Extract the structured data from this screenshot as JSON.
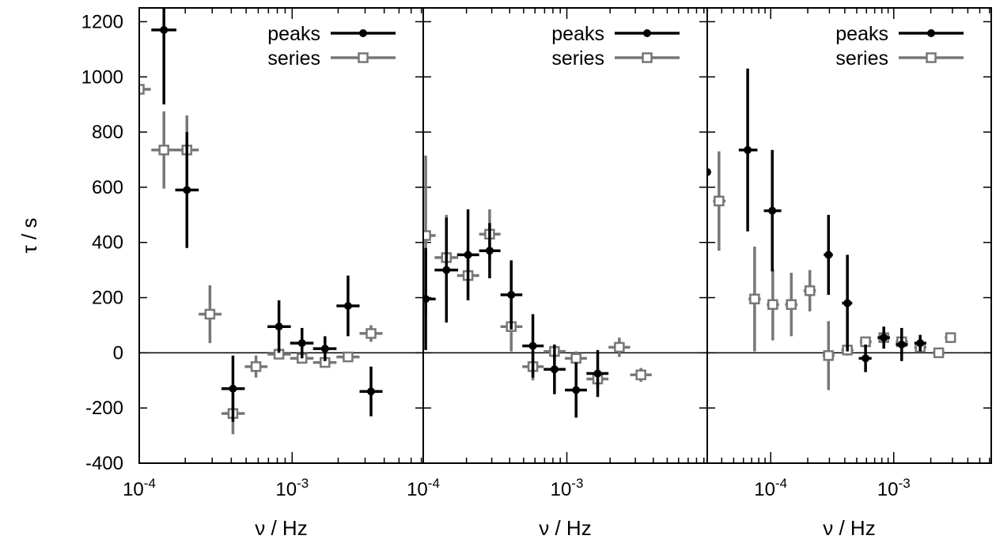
{
  "chart_data": {
    "type": "scatter",
    "ylabel": "τ / s",
    "xscale": "log",
    "grid": false,
    "legend_position": "top-right",
    "colors": {
      "peaks": "#000000",
      "series": "#777777",
      "zero_line": "#000000"
    },
    "yticks": [
      "1200",
      "1000",
      "800",
      "600",
      "400",
      "200",
      "0",
      "-200",
      "-400"
    ],
    "ylim": [
      -400,
      1250
    ],
    "panels": [
      {
        "xlabel": "ν / Hz",
        "xlim": [
          0.0001,
          0.0072
        ],
        "xticks": [
          {
            "base": "10",
            "exp": "-4",
            "value": 0.0001
          },
          {
            "base": "10",
            "exp": "-3",
            "value": 0.001
          }
        ],
        "series": [
          {
            "name": "peaks",
            "marker": "circle",
            "points": [
              {
                "x": 0.000145,
                "y": 1170,
                "yerr": 270,
                "xlo": 0.00012,
                "xhi": 0.000175
              },
              {
                "x": 0.000205,
                "y": 590,
                "yerr": 210,
                "xlo": 0.000172,
                "xhi": 0.000245
              },
              {
                "x": 0.00041,
                "y": -130,
                "yerr": 120,
                "xlo": 0.000345,
                "xhi": 0.00049
              },
              {
                "x": 0.00082,
                "y": 95,
                "yerr": 95,
                "xlo": 0.00069,
                "xhi": 0.00098
              },
              {
                "x": 0.00116,
                "y": 35,
                "yerr": 55,
                "xlo": 0.00097,
                "xhi": 0.00138
              },
              {
                "x": 0.00164,
                "y": 15,
                "yerr": 45,
                "xlo": 0.00137,
                "xhi": 0.00195
              },
              {
                "x": 0.00232,
                "y": 170,
                "yerr": 110,
                "xlo": 0.00195,
                "xhi": 0.00276
              },
              {
                "x": 0.00328,
                "y": -140,
                "yerr": 90,
                "xlo": 0.00276,
                "xhi": 0.0039
              }
            ]
          },
          {
            "name": "series",
            "marker": "square",
            "points": [
              {
                "x": 0.0001,
                "y": 955,
                "yerr": 0,
                "xlo": 0.0001,
                "xhi": 0.000119
              },
              {
                "x": 0.000145,
                "y": 735,
                "yerr": 140,
                "xlo": 0.00012,
                "xhi": 0.000175
              },
              {
                "x": 0.000205,
                "y": 735,
                "yerr": 125,
                "xlo": 0.000172,
                "xhi": 0.000245
              },
              {
                "x": 0.00029,
                "y": 140,
                "yerr": 105,
                "xlo": 0.000245,
                "xhi": 0.000345
              },
              {
                "x": 0.00041,
                "y": -220,
                "yerr": 75,
                "xlo": 0.000345,
                "xhi": 0.00049
              },
              {
                "x": 0.00058,
                "y": -50,
                "yerr": 40,
                "xlo": 0.00049,
                "xhi": 0.00069
              },
              {
                "x": 0.00082,
                "y": -5,
                "yerr": 15,
                "xlo": 0.00069,
                "xhi": 0.00098
              },
              {
                "x": 0.00116,
                "y": -20,
                "yerr": 15,
                "xlo": 0.00097,
                "xhi": 0.00138
              },
              {
                "x": 0.00164,
                "y": -35,
                "yerr": 15,
                "xlo": 0.00137,
                "xhi": 0.00195
              },
              {
                "x": 0.00232,
                "y": -15,
                "yerr": 10,
                "xlo": 0.00195,
                "xhi": 0.00276
              },
              {
                "x": 0.00328,
                "y": 70,
                "yerr": 30,
                "xlo": 0.00276,
                "xhi": 0.0039
              }
            ]
          }
        ]
      },
      {
        "xlabel": "ν / Hz",
        "xlim": [
          0.0001,
          0.0095
        ],
        "xticks": [
          {
            "base": "10",
            "exp": "-4",
            "value": 0.0001
          },
          {
            "base": "10",
            "exp": "-3",
            "value": 0.001
          }
        ],
        "series": [
          {
            "name": "peaks",
            "marker": "circle",
            "points": [
              {
                "x": 0.000104,
                "y": 195,
                "yerr": 185,
                "xlo": 0.0001,
                "xhi": 0.000122
              },
              {
                "x": 0.000145,
                "y": 300,
                "yerr": 190,
                "xlo": 0.00012,
                "xhi": 0.000175
              },
              {
                "x": 0.000205,
                "y": 355,
                "yerr": 165,
                "xlo": 0.000172,
                "xhi": 0.000245
              },
              {
                "x": 0.00029,
                "y": 370,
                "yerr": 100,
                "xlo": 0.000245,
                "xhi": 0.000345
              },
              {
                "x": 0.00041,
                "y": 210,
                "yerr": 125,
                "xlo": 0.000345,
                "xhi": 0.00049
              },
              {
                "x": 0.00058,
                "y": 25,
                "yerr": 115,
                "xlo": 0.00049,
                "xhi": 0.00069
              },
              {
                "x": 0.00082,
                "y": -60,
                "yerr": 90,
                "xlo": 0.00069,
                "xhi": 0.00098
              },
              {
                "x": 0.00116,
                "y": -135,
                "yerr": 100,
                "xlo": 0.00097,
                "xhi": 0.00138
              },
              {
                "x": 0.00164,
                "y": -75,
                "yerr": 85,
                "xlo": 0.00137,
                "xhi": 0.00195
              }
            ]
          },
          {
            "name": "series",
            "marker": "square",
            "points": [
              {
                "x": 0.000104,
                "y": 425,
                "yerr": 290,
                "xlo": 0.0001,
                "xhi": 0.000122
              },
              {
                "x": 0.000145,
                "y": 345,
                "yerr": 155,
                "xlo": 0.00012,
                "xhi": 0.000175
              },
              {
                "x": 0.000205,
                "y": 280,
                "yerr": 90,
                "xlo": 0.000172,
                "xhi": 0.000245
              },
              {
                "x": 0.00029,
                "y": 430,
                "yerr": 90,
                "xlo": 0.000245,
                "xhi": 0.000345
              },
              {
                "x": 0.00041,
                "y": 95,
                "yerr": 90,
                "xlo": 0.000345,
                "xhi": 0.00049
              },
              {
                "x": 0.00058,
                "y": -50,
                "yerr": 50,
                "xlo": 0.00049,
                "xhi": 0.00069
              },
              {
                "x": 0.00082,
                "y": 5,
                "yerr": 25,
                "xlo": 0.00069,
                "xhi": 0.00098
              },
              {
                "x": 0.00116,
                "y": -20,
                "yerr": 25,
                "xlo": 0.00097,
                "xhi": 0.00138
              },
              {
                "x": 0.00164,
                "y": -95,
                "yerr": 30,
                "xlo": 0.00137,
                "xhi": 0.00195
              },
              {
                "x": 0.00232,
                "y": 20,
                "yerr": 35,
                "xlo": 0.00195,
                "xhi": 0.00276
              },
              {
                "x": 0.00328,
                "y": -80,
                "yerr": 25,
                "xlo": 0.00276,
                "xhi": 0.0039
              }
            ]
          }
        ]
      },
      {
        "xlabel": "ν / Hz",
        "xlim": [
          3.05e-05,
          0.0062
        ],
        "xticks": [
          {
            "base": "10",
            "exp": "-4",
            "value": 0.0001
          },
          {
            "base": "10",
            "exp": "-3",
            "value": 0.001
          }
        ],
        "series": [
          {
            "name": "peaks",
            "marker": "circle",
            "points": [
              {
                "x": 3.05e-05,
                "y": 655,
                "yerr": 0,
                "xlo": 3.05e-05,
                "xhi": 3.15e-05
              },
              {
                "x": 6.5e-05,
                "y": 735,
                "yerr": 295,
                "xlo": 5.5e-05,
                "xhi": 7.8e-05
              },
              {
                "x": 0.000103,
                "y": 515,
                "yerr": 220,
                "xlo": 8.8e-05,
                "xhi": 0.000122
              },
              {
                "x": 0.000295,
                "y": 355,
                "yerr": 145,
                "xlo": 0.00027,
                "xhi": 0.00032
              },
              {
                "x": 0.00042,
                "y": 180,
                "yerr": 175,
                "xlo": 0.00038,
                "xhi": 0.00046
              },
              {
                "x": 0.00059,
                "y": -20,
                "yerr": 50,
                "xlo": 0.00052,
                "xhi": 0.00066
              },
              {
                "x": 0.00083,
                "y": 55,
                "yerr": 40,
                "xlo": 0.00074,
                "xhi": 0.00093
              },
              {
                "x": 0.00116,
                "y": 30,
                "yerr": 60,
                "xlo": 0.00104,
                "xhi": 0.0013
              },
              {
                "x": 0.00164,
                "y": 35,
                "yerr": 30,
                "xlo": 0.00147,
                "xhi": 0.00184
              }
            ]
          },
          {
            "name": "series",
            "marker": "square",
            "points": [
              {
                "x": 3.8e-05,
                "y": 550,
                "yerr": 180,
                "xlo": 3.4e-05,
                "xhi": 4.3e-05
              },
              {
                "x": 7.4e-05,
                "y": 195,
                "yerr": 190,
                "xlo": 6.6e-05,
                "xhi": 8.3e-05
              },
              {
                "x": 0.000104,
                "y": 175,
                "yerr": 130,
                "xlo": 9.3e-05,
                "xhi": 0.000117
              },
              {
                "x": 0.000147,
                "y": 175,
                "yerr": 115,
                "xlo": 0.000131,
                "xhi": 0.000165
              },
              {
                "x": 0.000208,
                "y": 225,
                "yerr": 75,
                "xlo": 0.000185,
                "xhi": 0.000233
              },
              {
                "x": 0.000295,
                "y": -10,
                "yerr": 125,
                "xlo": 0.000265,
                "xhi": 0.00033
              },
              {
                "x": 0.00042,
                "y": 10,
                "yerr": 20,
                "xlo": 0.000375,
                "xhi": 0.00047
              },
              {
                "x": 0.00059,
                "y": 40,
                "yerr": 15,
                "xlo": 0.00053,
                "xhi": 0.00066
              },
              {
                "x": 0.00083,
                "y": 55,
                "yerr": 15,
                "xlo": 0.00074,
                "xhi": 0.00093
              },
              {
                "x": 0.00116,
                "y": 40,
                "yerr": 15,
                "xlo": 0.00104,
                "xhi": 0.0013
              },
              {
                "x": 0.00164,
                "y": 20,
                "yerr": 15,
                "xlo": 0.00147,
                "xhi": 0.00184
              },
              {
                "x": 0.00232,
                "y": 0,
                "yerr": 10,
                "xlo": 0.00207,
                "xhi": 0.0026
              },
              {
                "x": 0.0029,
                "y": 55,
                "yerr": 10,
                "xlo": 0.0026,
                "xhi": 0.0032
              }
            ]
          }
        ]
      }
    ]
  }
}
